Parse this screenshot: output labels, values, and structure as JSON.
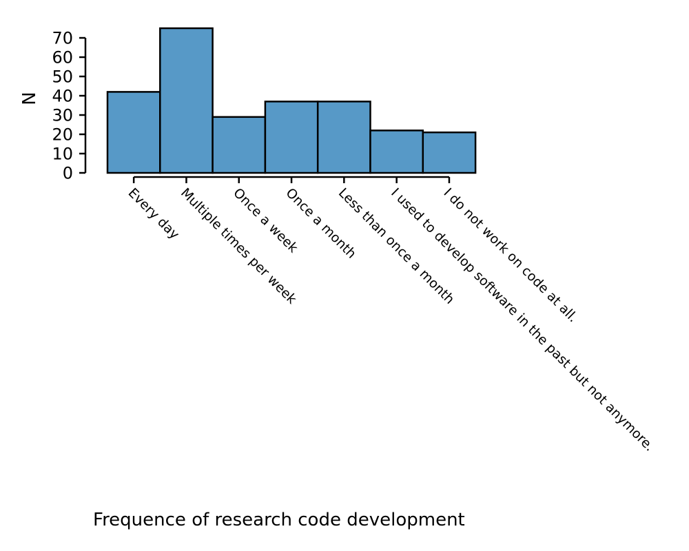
{
  "chart_data": {
    "type": "bar",
    "title": "",
    "xlabel": "Frequence of research code development",
    "ylabel": "N",
    "categories": [
      "Every day",
      "Multiple times per week",
      "Once a week",
      "Once a month",
      "Less than once a month",
      "I used to develop software in the past but not anymore.",
      "I do not work on code at all."
    ],
    "values": [
      42,
      75,
      29,
      37,
      37,
      22,
      21
    ],
    "ylim": [
      0,
      70
    ],
    "yticks": [
      0,
      10,
      20,
      30,
      40,
      50,
      60,
      70
    ],
    "grid": false,
    "bar_color": "#5799c7",
    "edge_color": "#000000"
  }
}
